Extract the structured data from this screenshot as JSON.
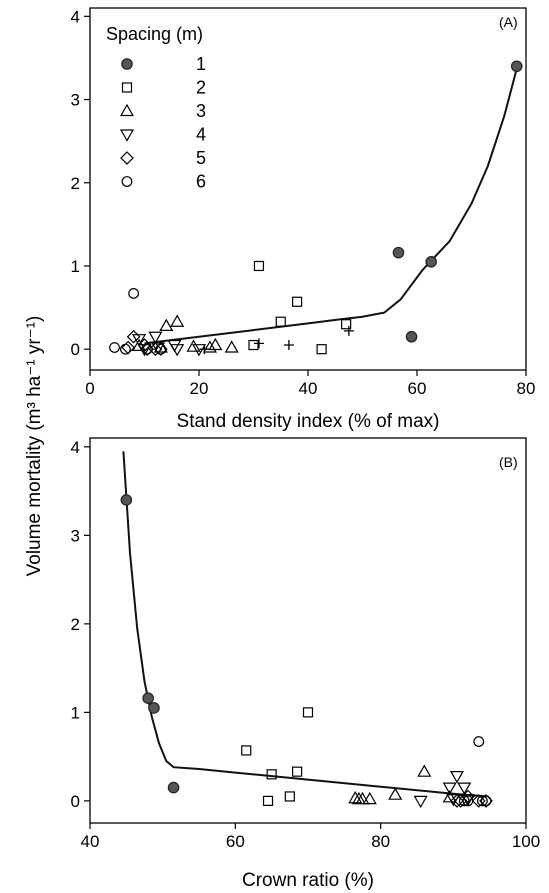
{
  "ylabel": "Volume mortality (m³ ha⁻¹ yr⁻¹)",
  "legend": {
    "title": "Spacing (m)",
    "items": [
      {
        "label": "1",
        "marker": "filled-circle"
      },
      {
        "label": "2",
        "marker": "open-square"
      },
      {
        "label": "3",
        "marker": "open-triangle-up"
      },
      {
        "label": "4",
        "marker": "open-triangle-down"
      },
      {
        "label": "5",
        "marker": "open-diamond"
      },
      {
        "label": "6",
        "marker": "open-circle"
      }
    ]
  },
  "chart_data": [
    {
      "type": "scatter",
      "panel_label": "(A)",
      "xlabel": "Stand density index (% of max)",
      "xlim": [
        0,
        80
      ],
      "ylim": [
        -0.25,
        4.1
      ],
      "xticks": [
        0,
        20,
        40,
        60,
        80
      ],
      "yticks": [
        0,
        1,
        2,
        3,
        4
      ],
      "series": [
        {
          "name": "1",
          "marker": "filled-circle",
          "points": [
            [
              78.3,
              3.4
            ],
            [
              56.6,
              1.16
            ],
            [
              62.6,
              1.05
            ],
            [
              59.0,
              0.15
            ]
          ]
        },
        {
          "name": "2",
          "marker": "open-square",
          "points": [
            [
              31.0,
              1.0
            ],
            [
              38.0,
              0.57
            ],
            [
              35.0,
              0.33
            ],
            [
              47.0,
              0.3
            ],
            [
              30.0,
              0.05
            ],
            [
              42.5,
              0.0
            ]
          ]
        },
        {
          "name": "3",
          "marker": "open-triangle-up",
          "points": [
            [
              16.0,
              0.33
            ],
            [
              14.0,
              0.28
            ],
            [
              9.0,
              0.04
            ],
            [
              19.0,
              0.03
            ],
            [
              22.0,
              0.02
            ],
            [
              23.0,
              0.05
            ],
            [
              26.0,
              0.02
            ],
            [
              13.0,
              0.02
            ]
          ]
        },
        {
          "name": "4",
          "marker": "open-triangle-down",
          "points": [
            [
              12.0,
              0.15
            ],
            [
              9.0,
              0.12
            ],
            [
              16.0,
              0.0
            ],
            [
              12.5,
              0.02
            ],
            [
              10.0,
              0.0
            ],
            [
              20.0,
              0.0
            ],
            [
              15.5,
              0.05
            ]
          ]
        },
        {
          "name": "5",
          "marker": "open-diamond",
          "points": [
            [
              8.0,
              0.15
            ],
            [
              10.0,
              0.05
            ],
            [
              13.0,
              0.0
            ],
            [
              10.5,
              0.0
            ],
            [
              7.0,
              0.02
            ],
            [
              12.0,
              0.0
            ]
          ]
        },
        {
          "name": "6",
          "marker": "open-circle",
          "points": [
            [
              8.0,
              0.67
            ],
            [
              4.5,
              0.02
            ],
            [
              10.5,
              0.0
            ],
            [
              6.5,
              0.0
            ],
            [
              13.0,
              0.0
            ]
          ]
        },
        {
          "marker": "plus",
          "points": [
            [
              21.0,
              0.0
            ],
            [
              31.0,
              0.07
            ],
            [
              36.5,
              0.05
            ],
            [
              47.5,
              0.22
            ]
          ]
        }
      ],
      "fit_line": {
        "x": [
          10,
          20,
          30,
          40,
          46,
          50,
          54,
          57,
          61,
          66,
          70,
          73,
          76,
          78.5
        ],
        "y": [
          0.07,
          0.15,
          0.23,
          0.31,
          0.36,
          0.39,
          0.44,
          0.6,
          0.95,
          1.3,
          1.75,
          2.2,
          2.8,
          3.42
        ]
      }
    },
    {
      "type": "scatter",
      "panel_label": "(B)",
      "xlabel": "Crown ratio (%)",
      "xlim": [
        40,
        100
      ],
      "ylim": [
        -0.25,
        4.1
      ],
      "xticks": [
        40,
        60,
        80,
        100
      ],
      "yticks": [
        0,
        1,
        2,
        3,
        4
      ],
      "series": [
        {
          "name": "1",
          "marker": "filled-circle",
          "points": [
            [
              45.0,
              3.4
            ],
            [
              48.0,
              1.16
            ],
            [
              48.8,
              1.05
            ],
            [
              51.5,
              0.15
            ]
          ]
        },
        {
          "name": "2",
          "marker": "open-square",
          "points": [
            [
              70.0,
              1.0
            ],
            [
              61.5,
              0.57
            ],
            [
              65.0,
              0.3
            ],
            [
              68.5,
              0.33
            ],
            [
              67.5,
              0.05
            ],
            [
              64.5,
              0.0
            ]
          ]
        },
        {
          "name": "3",
          "marker": "open-triangle-up",
          "points": [
            [
              86.0,
              0.33
            ],
            [
              82.0,
              0.07
            ],
            [
              76.5,
              0.03
            ],
            [
              77.5,
              0.02
            ],
            [
              78.5,
              0.02
            ],
            [
              89.5,
              0.04
            ],
            [
              77.0,
              0.02
            ]
          ]
        },
        {
          "name": "4",
          "marker": "open-triangle-down",
          "points": [
            [
              90.5,
              0.28
            ],
            [
              89.5,
              0.15
            ],
            [
              91.5,
              0.15
            ],
            [
              85.5,
              0.0
            ],
            [
              90.0,
              0.02
            ],
            [
              92.0,
              0.02
            ]
          ]
        },
        {
          "name": "5",
          "marker": "open-diamond",
          "points": [
            [
              91.0,
              0.0
            ],
            [
              92.0,
              0.05
            ],
            [
              90.5,
              0.0
            ],
            [
              93.5,
              0.0
            ],
            [
              94.5,
              0.0
            ]
          ]
        },
        {
          "name": "6",
          "marker": "open-circle",
          "points": [
            [
              93.5,
              0.67
            ],
            [
              92.0,
              0.0
            ],
            [
              94.0,
              0.0
            ],
            [
              94.5,
              0.0
            ],
            [
              91.5,
              0.0
            ]
          ]
        }
      ],
      "fit_line": {
        "x": [
          44.6,
          45.5,
          46.5,
          47.5,
          48.5,
          49.5,
          50.5,
          51.5,
          55,
          60,
          70,
          80,
          90,
          94.5
        ],
        "y": [
          3.95,
          2.8,
          1.95,
          1.35,
          0.95,
          0.65,
          0.45,
          0.38,
          0.36,
          0.32,
          0.24,
          0.16,
          0.08,
          0.05
        ]
      }
    }
  ]
}
